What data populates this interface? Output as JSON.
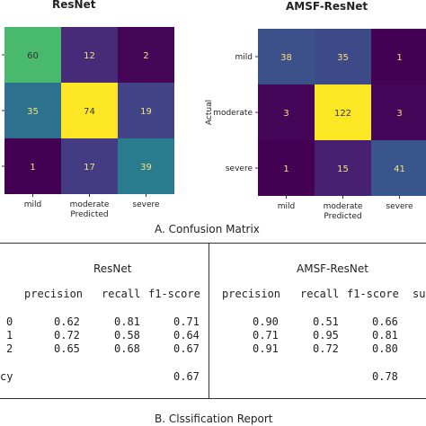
{
  "chart_data": [
    {
      "type": "heatmap",
      "title": "ResNet",
      "xlabel": "Predicted",
      "ylabel": "",
      "x_categories": [
        "mild",
        "moderate",
        "severe"
      ],
      "y_categories": [
        "mild",
        "moderate",
        "severe"
      ],
      "matrix": [
        [
          60,
          12,
          2
        ],
        [
          35,
          74,
          19
        ],
        [
          1,
          17,
          39
        ]
      ]
    },
    {
      "type": "heatmap",
      "title": "AMSF-ResNet",
      "xlabel": "Predicted",
      "ylabel": "Actual",
      "x_categories": [
        "mild",
        "moderate",
        "severe"
      ],
      "y_categories": [
        "mild",
        "moderate",
        "severe"
      ],
      "matrix": [
        [
          38,
          35,
          1
        ],
        [
          3,
          122,
          3
        ],
        [
          1,
          15,
          41
        ]
      ]
    }
  ],
  "confusion_caption": "A. Confusion Matrix",
  "report": {
    "resnet": {
      "title": "ResNet",
      "headers": [
        "precision",
        "recall",
        "f1-score"
      ],
      "rows": [
        {
          "label": "0",
          "precision": "0.62",
          "recall": "0.81",
          "f1": "0.71"
        },
        {
          "label": "1",
          "precision": "0.72",
          "recall": "0.58",
          "f1": "0.64"
        },
        {
          "label": "2",
          "precision": "0.65",
          "recall": "0.68",
          "f1": "0.67"
        }
      ],
      "accuracy_label": "cy",
      "accuracy": "0.67"
    },
    "amsf": {
      "title": "AMSF-ResNet",
      "headers": [
        "precision",
        "recall",
        "f1-score",
        "su"
      ],
      "rows": [
        {
          "precision": "0.90",
          "recall": "0.51",
          "f1": "0.66"
        },
        {
          "precision": "0.71",
          "recall": "0.95",
          "f1": "0.81"
        },
        {
          "precision": "0.91",
          "recall": "0.72",
          "f1": "0.80"
        }
      ],
      "accuracy": "0.78"
    },
    "caption": "B. Clssification Report"
  }
}
